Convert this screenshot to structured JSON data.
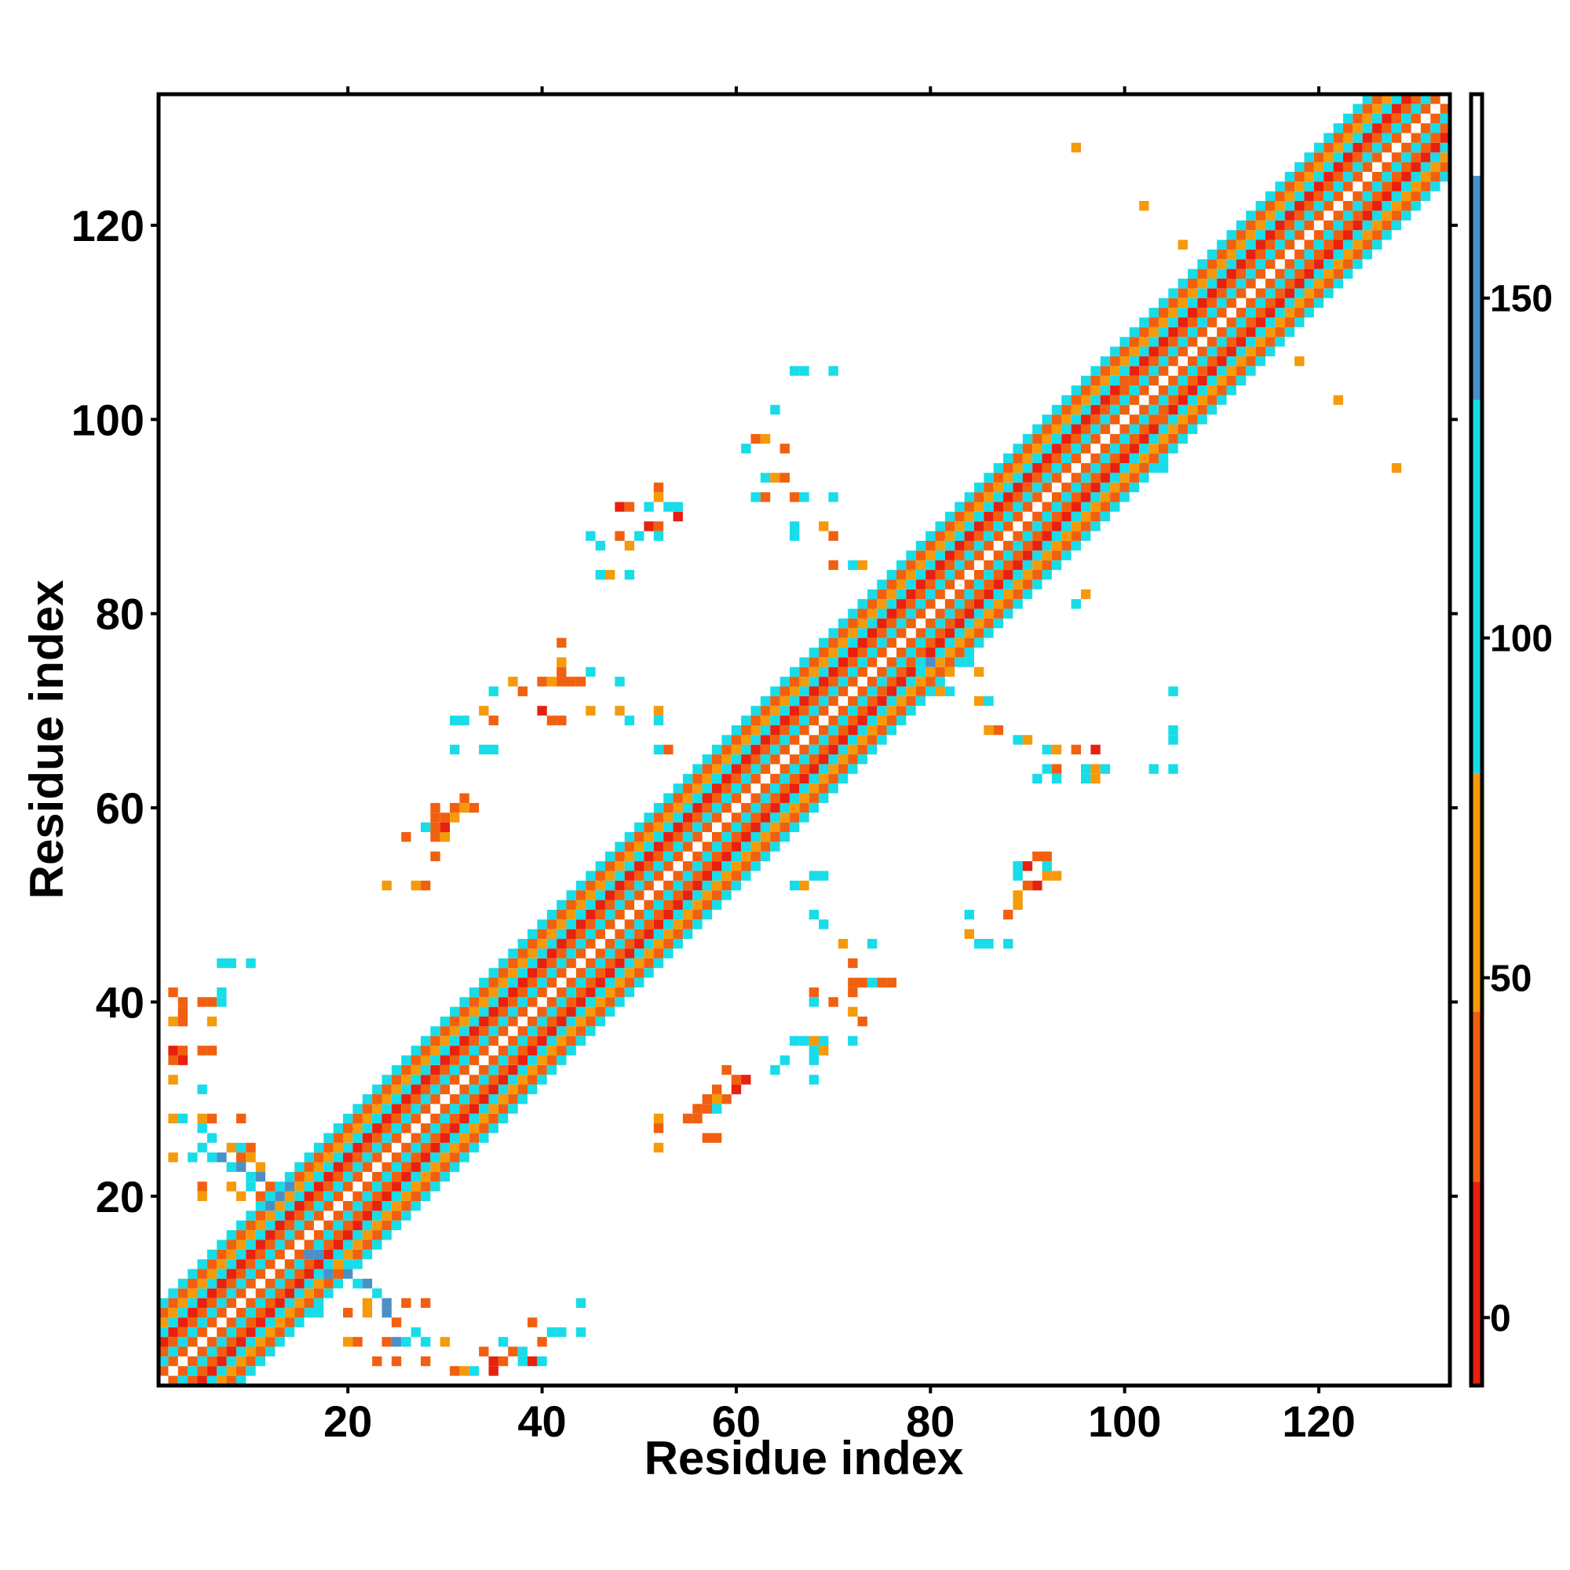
{
  "chart_data": {
    "type": "heatmap",
    "title": "",
    "xlabel": "Residue index",
    "ylabel": "Residue index",
    "xlim": [
      1,
      133
    ],
    "ylim": [
      1,
      133
    ],
    "x_ticks": [
      20,
      40,
      60,
      80,
      100,
      120
    ],
    "y_ticks": [
      20,
      40,
      60,
      80,
      100,
      120
    ],
    "x_tick_labels": [
      "20",
      "40",
      "60",
      "80",
      "100",
      "120"
    ],
    "y_tick_labels": [
      "20",
      "40",
      "60",
      "80",
      "100",
      "120"
    ],
    "grid": false,
    "legend": "colorbar-right",
    "colorbar": {
      "range": [
        -10,
        180
      ],
      "ticks": [
        0,
        50,
        100,
        150
      ],
      "tick_labels": [
        "0",
        "50",
        "100",
        "150"
      ],
      "bands": [
        {
          "from": -10,
          "to": 20,
          "color": "#e8200e"
        },
        {
          "from": 20,
          "to": 45,
          "color": "#f06010"
        },
        {
          "from": 45,
          "to": 80,
          "color": "#f59a0a"
        },
        {
          "from": 80,
          "to": 135,
          "color": "#18dce8"
        },
        {
          "from": 135,
          "to": 168,
          "color": "#4a90c8"
        },
        {
          "from": 168,
          "to": 180,
          "color": "#ffffff"
        }
      ]
    },
    "category_colors": {
      "R": "#e8200e",
      "O": "#f06010",
      "A": "#f59a0a",
      "C": "#18dce8",
      "B": "#4a90c8"
    },
    "diagonal_band": {
      "range": [
        1,
        133
      ],
      "note": "symmetric band of contacts along the main diagonal, offsets up to 8 residues",
      "offset_pattern": {
        "1": "O",
        "2": "C",
        "3": "O",
        "4": "R",
        "5": "C",
        "6": "A",
        "7": "O",
        "8": "C"
      }
    },
    "cells": [
      [
        7,
        44,
        "C"
      ],
      [
        8,
        44,
        "C"
      ],
      [
        10,
        44,
        "C"
      ],
      [
        2,
        41,
        "O"
      ],
      [
        5,
        40,
        "O"
      ],
      [
        6,
        40,
        "O"
      ],
      [
        7,
        41,
        "C"
      ],
      [
        7,
        40,
        "C"
      ],
      [
        3,
        40,
        "O"
      ],
      [
        3,
        39,
        "O"
      ],
      [
        2,
        38,
        "A"
      ],
      [
        3,
        38,
        "O"
      ],
      [
        6,
        38,
        "A"
      ],
      [
        2,
        35,
        "R"
      ],
      [
        3,
        35,
        "O"
      ],
      [
        5,
        35,
        "O"
      ],
      [
        6,
        35,
        "O"
      ],
      [
        2,
        34,
        "O"
      ],
      [
        3,
        34,
        "R"
      ],
      [
        2,
        32,
        "A"
      ],
      [
        5,
        31,
        "C"
      ],
      [
        2,
        28,
        "A"
      ],
      [
        3,
        28,
        "C"
      ],
      [
        5,
        28,
        "A"
      ],
      [
        6,
        28,
        "O"
      ],
      [
        9,
        28,
        "O"
      ],
      [
        5,
        27,
        "C"
      ],
      [
        6,
        26,
        "C"
      ],
      [
        5,
        25,
        "C"
      ],
      [
        8,
        25,
        "A"
      ],
      [
        9,
        25,
        "C"
      ],
      [
        10,
        25,
        "O"
      ],
      [
        2,
        24,
        "A"
      ],
      [
        4,
        24,
        "C"
      ],
      [
        6,
        24,
        "C"
      ],
      [
        7,
        24,
        "B"
      ],
      [
        9,
        24,
        "O"
      ],
      [
        10,
        24,
        "A"
      ],
      [
        8,
        23,
        "C"
      ],
      [
        9,
        23,
        "B"
      ],
      [
        11,
        23,
        "A"
      ],
      [
        10,
        22,
        "C"
      ],
      [
        11,
        22,
        "B"
      ],
      [
        5,
        21,
        "O"
      ],
      [
        8,
        21,
        "A"
      ],
      [
        10,
        21,
        "C"
      ],
      [
        12,
        21,
        "O"
      ],
      [
        14,
        21,
        "B"
      ],
      [
        5,
        20,
        "A"
      ],
      [
        9,
        20,
        "A"
      ],
      [
        11,
        20,
        "O"
      ],
      [
        13,
        20,
        "B"
      ],
      [
        12,
        19,
        "B"
      ],
      [
        10,
        18,
        "C"
      ],
      [
        13,
        18,
        "C"
      ],
      [
        12,
        17,
        "C"
      ],
      [
        16,
        14,
        "B"
      ],
      [
        17,
        14,
        "B"
      ],
      [
        19,
        14,
        "C"
      ],
      [
        20,
        13,
        "C"
      ],
      [
        18,
        12,
        "B"
      ],
      [
        20,
        12,
        "B"
      ],
      [
        21,
        11,
        "C"
      ],
      [
        22,
        11,
        "B"
      ],
      [
        23,
        10,
        "C"
      ],
      [
        22,
        9,
        "A"
      ],
      [
        24,
        9,
        "B"
      ],
      [
        26,
        9,
        "O"
      ],
      [
        28,
        9,
        "O"
      ],
      [
        17,
        8,
        "C"
      ],
      [
        20,
        8,
        "O"
      ],
      [
        22,
        8,
        "A"
      ],
      [
        24,
        8,
        "B"
      ],
      [
        25,
        7,
        "O"
      ],
      [
        27,
        6,
        "C"
      ],
      [
        20,
        5,
        "A"
      ],
      [
        21,
        5,
        "O"
      ],
      [
        24,
        5,
        "O"
      ],
      [
        25,
        5,
        "B"
      ],
      [
        26,
        5,
        "C"
      ],
      [
        28,
        5,
        "C"
      ],
      [
        30,
        5,
        "A"
      ],
      [
        23,
        3,
        "O"
      ],
      [
        25,
        3,
        "O"
      ],
      [
        28,
        3,
        "O"
      ],
      [
        31,
        2,
        "O"
      ],
      [
        32,
        2,
        "A"
      ],
      [
        33,
        2,
        "C"
      ],
      [
        35,
        2,
        "R"
      ],
      [
        34,
        4,
        "O"
      ],
      [
        37,
        4,
        "O"
      ],
      [
        35,
        3,
        "R"
      ],
      [
        36,
        3,
        "O"
      ],
      [
        38,
        3,
        "C"
      ],
      [
        39,
        3,
        "R"
      ],
      [
        40,
        3,
        "C"
      ],
      [
        36,
        5,
        "C"
      ],
      [
        40,
        5,
        "O"
      ],
      [
        38,
        4,
        "C"
      ],
      [
        41,
        6,
        "C"
      ],
      [
        42,
        6,
        "C"
      ],
      [
        44,
        6,
        "C"
      ],
      [
        44,
        9,
        "C"
      ],
      [
        39,
        7,
        "O"
      ],
      [
        52,
        25,
        "A"
      ],
      [
        52,
        27,
        "O"
      ],
      [
        52,
        28,
        "A"
      ],
      [
        55,
        28,
        "O"
      ],
      [
        56,
        28,
        "O"
      ],
      [
        56,
        29,
        "O"
      ],
      [
        57,
        29,
        "O"
      ],
      [
        58,
        29,
        "C"
      ],
      [
        57,
        30,
        "O"
      ],
      [
        58,
        31,
        "O"
      ],
      [
        59,
        30,
        "O"
      ],
      [
        60,
        32,
        "O"
      ],
      [
        57,
        26,
        "O"
      ],
      [
        58,
        26,
        "O"
      ],
      [
        61,
        32,
        "R"
      ],
      [
        59,
        33,
        "O"
      ],
      [
        60,
        31,
        "R"
      ],
      [
        58,
        30,
        "A"
      ],
      [
        24,
        52,
        "A"
      ],
      [
        27,
        52,
        "A"
      ],
      [
        28,
        52,
        "O"
      ],
      [
        26,
        57,
        "O"
      ],
      [
        28,
        58,
        "C"
      ],
      [
        29,
        58,
        "O"
      ],
      [
        30,
        58,
        "R"
      ],
      [
        29,
        59,
        "O"
      ],
      [
        30,
        59,
        "O"
      ],
      [
        31,
        59,
        "A"
      ],
      [
        29,
        60,
        "O"
      ],
      [
        31,
        60,
        "O"
      ],
      [
        32,
        60,
        "A"
      ],
      [
        32,
        61,
        "O"
      ],
      [
        33,
        60,
        "O"
      ],
      [
        29,
        57,
        "O"
      ],
      [
        30,
        57,
        "A"
      ],
      [
        29,
        55,
        "O"
      ],
      [
        31,
        66,
        "C"
      ],
      [
        34,
        66,
        "C"
      ],
      [
        31,
        69,
        "C"
      ],
      [
        32,
        69,
        "C"
      ],
      [
        34,
        70,
        "A"
      ],
      [
        35,
        69,
        "O"
      ],
      [
        35,
        66,
        "C"
      ],
      [
        35,
        72,
        "C"
      ],
      [
        40,
        73,
        "O"
      ],
      [
        41,
        73,
        "A"
      ],
      [
        42,
        73,
        "O"
      ],
      [
        43,
        73,
        "O"
      ],
      [
        44,
        73,
        "O"
      ],
      [
        45,
        74,
        "C"
      ],
      [
        42,
        74,
        "O"
      ],
      [
        42,
        75,
        "A"
      ],
      [
        42,
        77,
        "O"
      ],
      [
        40,
        70,
        "R"
      ],
      [
        41,
        69,
        "O"
      ],
      [
        42,
        69,
        "O"
      ],
      [
        45,
        70,
        "A"
      ],
      [
        48,
        70,
        "A"
      ],
      [
        49,
        69,
        "C"
      ],
      [
        52,
        69,
        "C"
      ],
      [
        52,
        70,
        "A"
      ],
      [
        52,
        66,
        "C"
      ],
      [
        53,
        66,
        "O"
      ],
      [
        48,
        73,
        "C"
      ],
      [
        38,
        72,
        "O"
      ],
      [
        37,
        73,
        "A"
      ],
      [
        45,
        88,
        "C"
      ],
      [
        46,
        87,
        "C"
      ],
      [
        46,
        84,
        "C"
      ],
      [
        47,
        84,
        "A"
      ],
      [
        49,
        84,
        "C"
      ],
      [
        48,
        88,
        "O"
      ],
      [
        49,
        87,
        "A"
      ],
      [
        48,
        91,
        "R"
      ],
      [
        49,
        91,
        "O"
      ],
      [
        51,
        91,
        "C"
      ],
      [
        50,
        88,
        "C"
      ],
      [
        52,
        88,
        "C"
      ],
      [
        51,
        89,
        "R"
      ],
      [
        52,
        89,
        "O"
      ],
      [
        52,
        92,
        "A"
      ],
      [
        53,
        91,
        "C"
      ],
      [
        52,
        93,
        "O"
      ],
      [
        54,
        90,
        "R"
      ],
      [
        54,
        91,
        "C"
      ],
      [
        61,
        97,
        "C"
      ],
      [
        62,
        98,
        "O"
      ],
      [
        63,
        98,
        "A"
      ],
      [
        63,
        94,
        "C"
      ],
      [
        64,
        94,
        "A"
      ],
      [
        65,
        97,
        "O"
      ],
      [
        65,
        94,
        "O"
      ],
      [
        66,
        92,
        "O"
      ],
      [
        62,
        92,
        "C"
      ],
      [
        63,
        92,
        "O"
      ],
      [
        67,
        92,
        "C"
      ],
      [
        70,
        92,
        "C"
      ],
      [
        66,
        89,
        "C"
      ],
      [
        66,
        88,
        "C"
      ],
      [
        69,
        89,
        "A"
      ],
      [
        70,
        88,
        "O"
      ],
      [
        70,
        85,
        "O"
      ],
      [
        72,
        85,
        "C"
      ],
      [
        73,
        85,
        "A"
      ],
      [
        64,
        101,
        "C"
      ],
      [
        66,
        105,
        "C"
      ],
      [
        67,
        105,
        "C"
      ],
      [
        70,
        105,
        "C"
      ],
      [
        66,
        52,
        "C"
      ],
      [
        67,
        52,
        "A"
      ],
      [
        68,
        53,
        "C"
      ],
      [
        69,
        53,
        "C"
      ],
      [
        68,
        49,
        "C"
      ],
      [
        69,
        48,
        "C"
      ],
      [
        71,
        46,
        "A"
      ],
      [
        74,
        46,
        "C"
      ],
      [
        72,
        44,
        "O"
      ],
      [
        72,
        42,
        "O"
      ],
      [
        72,
        41,
        "O"
      ],
      [
        73,
        42,
        "O"
      ],
      [
        74,
        42,
        "C"
      ],
      [
        75,
        42,
        "O"
      ],
      [
        76,
        42,
        "O"
      ],
      [
        68,
        41,
        "O"
      ],
      [
        68,
        40,
        "C"
      ],
      [
        70,
        40,
        "O"
      ],
      [
        72,
        39,
        "A"
      ],
      [
        73,
        38,
        "O"
      ],
      [
        69,
        36,
        "C"
      ],
      [
        68,
        35,
        "C"
      ],
      [
        66,
        36,
        "C"
      ],
      [
        67,
        36,
        "C"
      ],
      [
        68,
        36,
        "A"
      ],
      [
        69,
        35,
        "A"
      ],
      [
        72,
        36,
        "C"
      ],
      [
        64,
        33,
        "C"
      ],
      [
        65,
        34,
        "C"
      ],
      [
        68,
        34,
        "C"
      ],
      [
        68,
        32,
        "C"
      ],
      [
        84,
        49,
        "C"
      ],
      [
        84,
        47,
        "A"
      ],
      [
        85,
        46,
        "C"
      ],
      [
        86,
        46,
        "C"
      ],
      [
        88,
        46,
        "C"
      ],
      [
        88,
        49,
        "O"
      ],
      [
        89,
        50,
        "A"
      ],
      [
        89,
        51,
        "A"
      ],
      [
        90,
        52,
        "O"
      ],
      [
        89,
        53,
        "C"
      ],
      [
        89,
        54,
        "C"
      ],
      [
        91,
        52,
        "R"
      ],
      [
        90,
        54,
        "R"
      ],
      [
        91,
        55,
        "O"
      ],
      [
        92,
        54,
        "C"
      ],
      [
        92,
        55,
        "O"
      ],
      [
        92,
        53,
        "A"
      ],
      [
        93,
        53,
        "A"
      ],
      [
        84,
        75,
        "C"
      ],
      [
        85,
        74,
        "A"
      ],
      [
        85,
        71,
        "A"
      ],
      [
        86,
        71,
        "C"
      ],
      [
        86,
        68,
        "A"
      ],
      [
        87,
        68,
        "O"
      ],
      [
        89,
        67,
        "C"
      ],
      [
        90,
        67,
        "A"
      ],
      [
        92,
        66,
        "C"
      ],
      [
        93,
        66,
        "A"
      ],
      [
        95,
        66,
        "O"
      ],
      [
        97,
        66,
        "R"
      ],
      [
        92,
        64,
        "C"
      ],
      [
        93,
        64,
        "O"
      ],
      [
        96,
        64,
        "C"
      ],
      [
        97,
        64,
        "A"
      ],
      [
        97,
        63,
        "A"
      ],
      [
        98,
        64,
        "C"
      ],
      [
        96,
        63,
        "C"
      ],
      [
        93,
        63,
        "C"
      ],
      [
        91,
        63,
        "C"
      ],
      [
        103,
        64,
        "C"
      ],
      [
        105,
        64,
        "C"
      ],
      [
        105,
        72,
        "C"
      ],
      [
        105,
        68,
        "C"
      ],
      [
        105,
        67,
        "C"
      ],
      [
        82,
        74,
        "A"
      ],
      [
        81,
        72,
        "A"
      ],
      [
        82,
        72,
        "C"
      ],
      [
        79,
        75,
        "C"
      ],
      [
        80,
        75,
        "B"
      ],
      [
        95,
        128,
        "A"
      ],
      [
        102,
        122,
        "A"
      ],
      [
        106,
        118,
        "A"
      ],
      [
        118,
        106,
        "A"
      ],
      [
        122,
        102,
        "A"
      ],
      [
        128,
        95,
        "A"
      ],
      [
        100,
        104,
        "O"
      ],
      [
        104,
        100,
        "O"
      ],
      [
        102,
        96,
        "A"
      ],
      [
        104,
        95,
        "C"
      ],
      [
        96,
        82,
        "A"
      ],
      [
        95,
        81,
        "C"
      ]
    ]
  }
}
